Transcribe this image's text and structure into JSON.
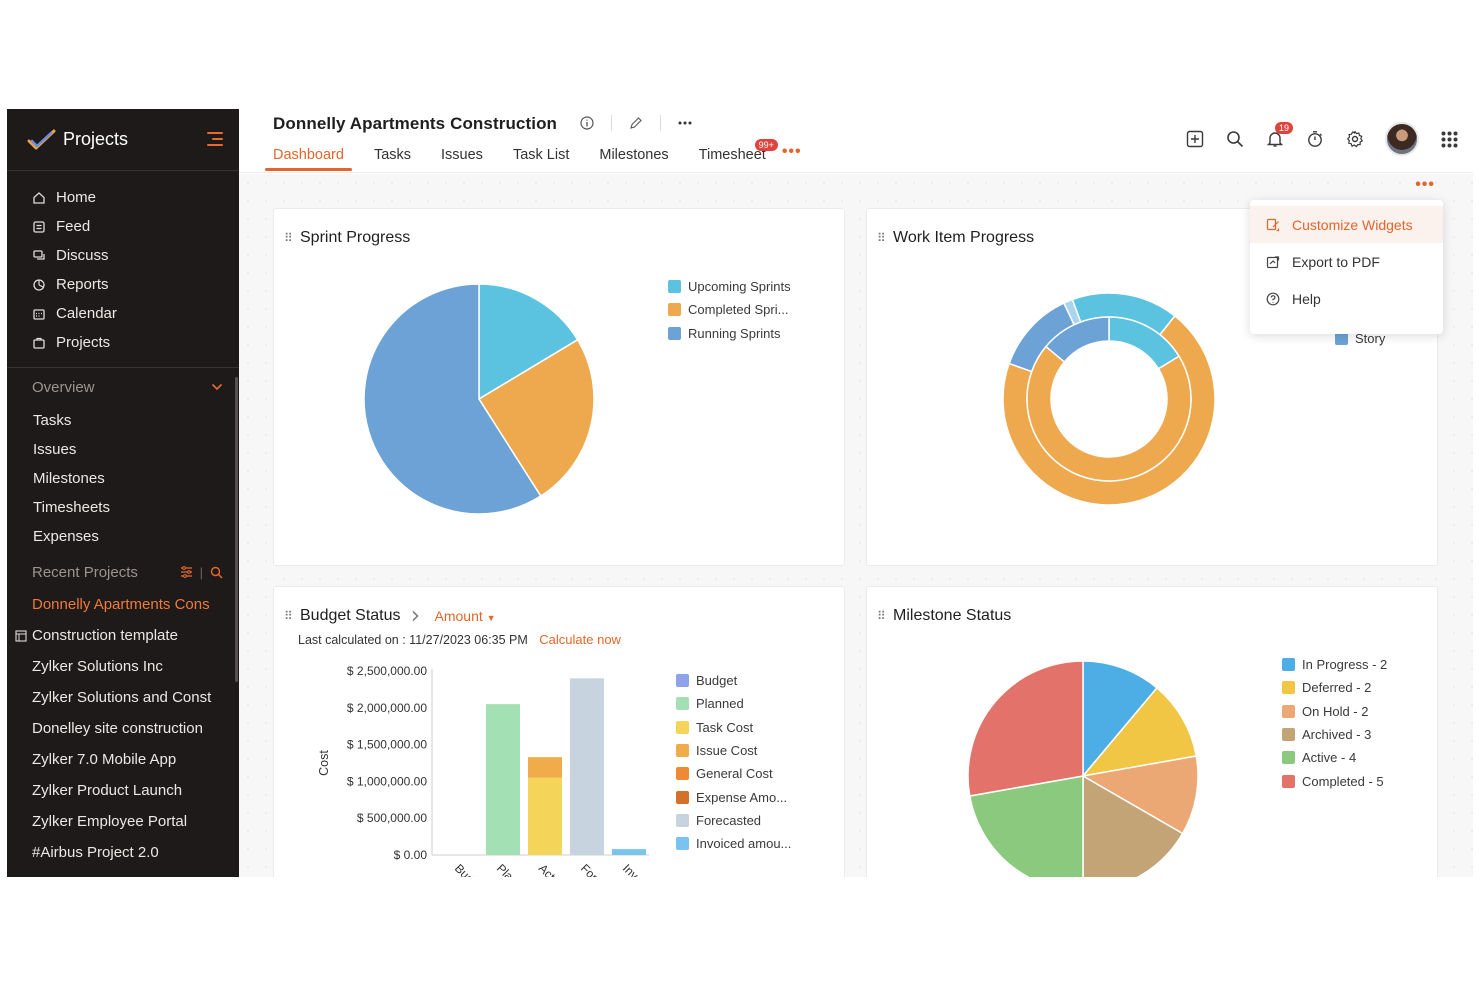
{
  "sidebar": {
    "brand": "Projects",
    "nav": [
      {
        "label": "Home",
        "icon": "home-icon"
      },
      {
        "label": "Feed",
        "icon": "feed-icon"
      },
      {
        "label": "Discuss",
        "icon": "discuss-icon"
      },
      {
        "label": "Reports",
        "icon": "reports-icon"
      },
      {
        "label": "Calendar",
        "icon": "calendar-icon"
      },
      {
        "label": "Projects",
        "icon": "projects-icon"
      }
    ],
    "overview_label": "Overview",
    "overview_items": [
      "Tasks",
      "Issues",
      "Milestones",
      "Timesheets",
      "Expenses"
    ],
    "recent_label": "Recent Projects",
    "recent_items": [
      "Donnelly Apartments Cons",
      "Construction template",
      "Zylker Solutions Inc",
      "Zylker Solutions and Const",
      "Donelley site construction",
      "Zylker 7.0 Mobile App",
      "Zylker Product Launch",
      "Zylker Employee Portal",
      "#Airbus Project 2.0"
    ]
  },
  "header": {
    "project_title": "Donnelly Apartments Construction",
    "tabs": [
      "Dashboard",
      "Tasks",
      "Issues",
      "Task List",
      "Milestones",
      "Timesheet"
    ],
    "active_tab": "Dashboard",
    "timesheet_badge": "99+",
    "notification_count": "19"
  },
  "menu": {
    "items": [
      {
        "label": "Customize Widgets",
        "icon": "customize-icon"
      },
      {
        "label": "Export to PDF",
        "icon": "export-icon"
      },
      {
        "label": "Help",
        "icon": "help-icon"
      }
    ]
  },
  "widgets": {
    "sprint": {
      "title": "Sprint Progress"
    },
    "workitem": {
      "title": "Work Item Progress",
      "hidden_legend": "Story"
    },
    "budget": {
      "title": "Budget Status",
      "mode": "Amount",
      "last_calc": "Last calculated on : 11/27/2023 06:35 PM",
      "calc_now": "Calculate now"
    },
    "milestone": {
      "title": "Milestone Status"
    }
  },
  "chart_data": [
    {
      "type": "pie",
      "title": "Sprint Progress",
      "labels": [
        "Upcoming Sprints",
        "Completed Spri...",
        "Running Sprints"
      ],
      "values": [
        1,
        1.5,
        3.6
      ],
      "colors": [
        "#5bc3e0",
        "#eea94f",
        "#6ca2d5"
      ]
    },
    {
      "type": "pie",
      "title": "Work Item Progress",
      "donut": true,
      "outer": {
        "values": [
          0.6,
          7,
          30,
          5.4
        ],
        "colors": [
          "#a9d6ee",
          "#5bc3e0",
          "#eea94f",
          "#6ca2d5"
        ]
      },
      "inner": {
        "values": [
          7,
          30,
          6
        ],
        "colors": [
          "#5bc3e0",
          "#eea94f",
          "#6ca2d5"
        ]
      }
    },
    {
      "type": "bar",
      "title": "Budget Status",
      "ylabel": "Cost",
      "ylim": [
        0,
        2500000
      ],
      "yticks": [
        "$ 2,500,000.00",
        "$ 2,000,000.00",
        "$ 1,500,000.00",
        "$ 1,000,000.00",
        "$ 500,000.00",
        "$ 0.00"
      ],
      "categories": [
        "Bud",
        "Plan",
        "Act",
        "Fore",
        "Inv"
      ],
      "bars": [
        {
          "category": "Bud",
          "segments": [
            {
              "series": "Budget",
              "value": 0
            }
          ]
        },
        {
          "category": "Plan",
          "segments": [
            {
              "series": "Planned",
              "value": 2050000
            }
          ]
        },
        {
          "category": "Act",
          "segments": [
            {
              "series": "Task Cost",
              "value": 1050000
            },
            {
              "series": "Issue Cost",
              "value": 280000
            }
          ]
        },
        {
          "category": "Fore",
          "segments": [
            {
              "series": "Forecasted",
              "value": 2400000
            }
          ]
        },
        {
          "category": "Inv",
          "segments": [
            {
              "series": "Invoiced amou...",
              "value": 80000
            }
          ]
        }
      ],
      "legend": [
        {
          "name": "Budget",
          "color": "#8ea3e8"
        },
        {
          "name": "Planned",
          "color": "#a3e0b3"
        },
        {
          "name": "Task Cost",
          "color": "#f4d55a"
        },
        {
          "name": "Issue Cost",
          "color": "#f0ab4a"
        },
        {
          "name": "General Cost",
          "color": "#ee8a35"
        },
        {
          "name": "Expense Amo...",
          "color": "#d2722a"
        },
        {
          "name": "Forecasted",
          "color": "#c7d3df"
        },
        {
          "name": "Invoiced amou...",
          "color": "#78c3ef"
        }
      ]
    },
    {
      "type": "pie",
      "title": "Milestone Status",
      "labels": [
        "In Progress - 2",
        "Deferred - 2",
        "On Hold - 2",
        "Archived - 3",
        "Active - 4",
        "Completed - 5"
      ],
      "values": [
        2,
        2,
        2,
        3,
        4,
        5
      ],
      "colors": [
        "#4daee6",
        "#f0c644",
        "#eca874",
        "#c2a477",
        "#8bc97f",
        "#e3736a"
      ]
    }
  ]
}
